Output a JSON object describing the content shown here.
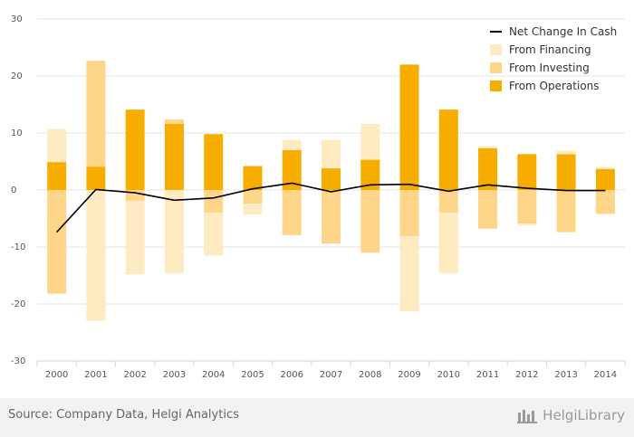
{
  "chart_data": {
    "type": "bar",
    "stacked": true,
    "categories": [
      "2000",
      "2001",
      "2002",
      "2003",
      "2004",
      "2005",
      "2006",
      "2007",
      "2008",
      "2009",
      "2010",
      "2011",
      "2012",
      "2013",
      "2014"
    ],
    "ylim": [
      -30,
      30
    ],
    "yticks": [
      "30",
      "20",
      "10",
      "0",
      "-10",
      "-20",
      "-30"
    ],
    "ytick_values": [
      30,
      20,
      10,
      0,
      -10,
      -20,
      -30
    ],
    "grid": true,
    "legend_position": "top-right",
    "series": [
      {
        "name": "From Operations",
        "color": "#f7ad00",
        "values": [
          4.9,
          4.1,
          14.1,
          11.6,
          9.8,
          4.2,
          7.0,
          3.8,
          5.3,
          22.0,
          14.1,
          7.3,
          6.3,
          6.3,
          3.7
        ]
      },
      {
        "name": "From Investing",
        "color": "#fdd68a",
        "values": [
          -18.2,
          18.6,
          -1.9,
          0.8,
          -4.0,
          -2.4,
          -7.9,
          -9.4,
          -11.0,
          -8.1,
          -4.0,
          -6.8,
          -5.9,
          -7.4,
          -4.2
        ]
      },
      {
        "name": "From Financing",
        "color": "#feebc2",
        "values": [
          5.8,
          -23.0,
          -12.9,
          -14.6,
          -7.5,
          -1.9,
          1.8,
          5.0,
          6.3,
          -13.2,
          -10.6,
          0.4,
          -0.3,
          0.6,
          0.3
        ]
      }
    ],
    "line": {
      "name": "Net Change In Cash",
      "color": "#000000",
      "values": [
        -7.4,
        0.1,
        -0.5,
        -1.8,
        -1.4,
        0.2,
        1.2,
        -0.3,
        0.9,
        1.0,
        -0.2,
        0.9,
        0.3,
        -0.1,
        -0.1
      ]
    },
    "legend_order": [
      "Net Change In Cash",
      "From Financing",
      "From Investing",
      "From Operations"
    ]
  },
  "footer": {
    "source": "Source: Company Data, Helgi Analytics",
    "brand": "HelgiLibrary"
  }
}
